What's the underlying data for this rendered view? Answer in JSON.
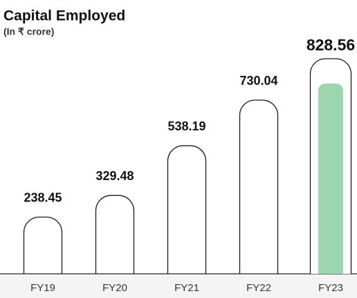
{
  "chart_data": {
    "type": "bar",
    "title": "Capital Employed",
    "subtitle": "(In ₹ crore)",
    "categories": [
      "FY19",
      "FY20",
      "FY21",
      "FY22",
      "FY23"
    ],
    "values": [
      238.45,
      329.48,
      538.19,
      730.04,
      828.56
    ],
    "colors": [
      "none",
      "none",
      "none",
      "none",
      "#9dd5ae"
    ],
    "outline_color": "#1a1a1a"
  }
}
